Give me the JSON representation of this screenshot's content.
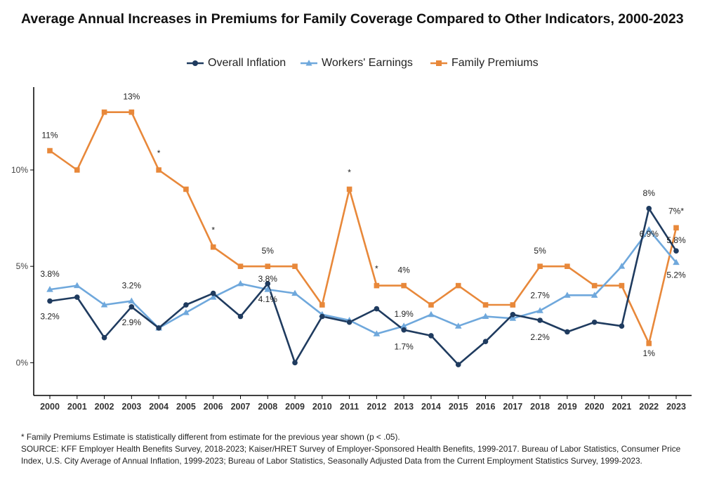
{
  "title": "Average Annual Increases in Premiums for Family Coverage Compared to Other Indicators, 2000-2023",
  "legend": [
    {
      "label": "Overall Inflation",
      "color": "#1f3b5f",
      "marker": "circle"
    },
    {
      "label": "Workers' Earnings",
      "color": "#6fa8dc",
      "marker": "triangle"
    },
    {
      "label": "Family Premiums",
      "color": "#e8883a",
      "marker": "square"
    }
  ],
  "chart_data": {
    "type": "line",
    "x": [
      "2000",
      "2001",
      "2002",
      "2003",
      "2004",
      "2005",
      "2006",
      "2007",
      "2008",
      "2009",
      "2010",
      "2011",
      "2012",
      "2013",
      "2014",
      "2015",
      "2016",
      "2017",
      "2018",
      "2019",
      "2020",
      "2021",
      "2022",
      "2023"
    ],
    "ylim": [
      -1.7,
      14.3
    ],
    "yticks": [
      0,
      5,
      10
    ],
    "ytick_labels": [
      "0%",
      "5%",
      "10%"
    ],
    "grid": false,
    "legend_position": "top",
    "series": [
      {
        "name": "Overall Inflation",
        "color": "#1f3b5f",
        "marker": "circle",
        "values": [
          3.2,
          3.4,
          1.3,
          2.9,
          1.8,
          3.0,
          3.6,
          2.4,
          4.1,
          0.0,
          2.4,
          2.1,
          2.8,
          1.7,
          1.4,
          -0.1,
          1.1,
          2.5,
          2.2,
          1.6,
          2.1,
          1.9,
          8.0,
          5.8
        ]
      },
      {
        "name": "Workers' Earnings",
        "color": "#6fa8dc",
        "marker": "triangle",
        "values": [
          3.8,
          4.0,
          3.0,
          3.2,
          1.8,
          2.6,
          3.4,
          4.1,
          3.8,
          3.6,
          2.5,
          2.2,
          1.5,
          1.9,
          2.5,
          1.9,
          2.4,
          2.3,
          2.7,
          3.5,
          3.5,
          5.0,
          6.9,
          5.2
        ]
      },
      {
        "name": "Family Premiums",
        "color": "#e8883a",
        "marker": "square",
        "values": [
          11,
          10,
          13,
          13,
          10,
          9,
          6,
          5,
          5,
          5,
          3,
          9,
          4,
          4,
          3,
          4,
          3,
          3,
          5,
          5,
          4,
          4,
          1,
          7
        ]
      }
    ],
    "annotations": [
      {
        "text": "11%",
        "xi": 0,
        "y": 11,
        "dy": -18
      },
      {
        "text": "13%",
        "xi": 3,
        "y": 13,
        "dy": -18
      },
      {
        "text": "*",
        "xi": 4,
        "y": 10,
        "dy": -20
      },
      {
        "text": "*",
        "xi": 6,
        "y": 6,
        "dy": -20
      },
      {
        "text": "5%",
        "xi": 8,
        "y": 5,
        "dy": -18
      },
      {
        "text": "*",
        "xi": 11,
        "y": 9,
        "dy": -20
      },
      {
        "text": "*",
        "xi": 12,
        "y": 4,
        "dy": -20
      },
      {
        "text": "4%",
        "xi": 13,
        "y": 4,
        "dy": -18
      },
      {
        "text": "5%",
        "xi": 18,
        "y": 5,
        "dy": -18
      },
      {
        "text": "8%",
        "xi": 22,
        "y": 8,
        "dy": -18
      },
      {
        "text": "7%*",
        "xi": 23,
        "y": 7,
        "dy": -20
      },
      {
        "text": "1%",
        "xi": 22,
        "y": 1,
        "dy": 18
      },
      {
        "text": "3.8%",
        "xi": 0,
        "y": 3.8,
        "dy": -18
      },
      {
        "text": "3.2%",
        "xi": 0,
        "y": 3.2,
        "dy": 26
      },
      {
        "text": "3.2%",
        "xi": 3,
        "y": 3.2,
        "dy": -18
      },
      {
        "text": "2.9%",
        "xi": 3,
        "y": 2.9,
        "dy": 26
      },
      {
        "text": "3.8%",
        "xi": 8,
        "y": 3.8,
        "dy": -11
      },
      {
        "text": "4.1%",
        "xi": 8,
        "y": 4.1,
        "dy": 26
      },
      {
        "text": "1.9%",
        "xi": 13,
        "y": 1.9,
        "dy": -13
      },
      {
        "text": "1.7%",
        "xi": 13,
        "y": 1.7,
        "dy": 28
      },
      {
        "text": "2.7%",
        "xi": 18,
        "y": 2.7,
        "dy": -18
      },
      {
        "text": "2.2%",
        "xi": 18,
        "y": 2.2,
        "dy": 28
      },
      {
        "text": "6.9%",
        "xi": 22,
        "y": 6.9,
        "dy": 10
      },
      {
        "text": "5.8%",
        "xi": 23,
        "y": 5.8,
        "dy": -11
      },
      {
        "text": "5.2%",
        "xi": 23,
        "y": 5.2,
        "dy": 22
      }
    ]
  },
  "footnotes": {
    "note": "* Family Premiums Estimate is statistically different from estimate for the previous year shown (p < .05).",
    "source": "SOURCE: KFF Employer Health Benefits Survey, 2018-2023; Kaiser/HRET Survey of Employer-Sponsored Health Benefits, 1999-2017. Bureau of Labor Statistics, Consumer Price Index, U.S. City Average of Annual Inflation, 1999-2023; Bureau of Labor Statistics, Seasonally Adjusted Data from the Current Employment Statistics Survey, 1999-2023."
  }
}
